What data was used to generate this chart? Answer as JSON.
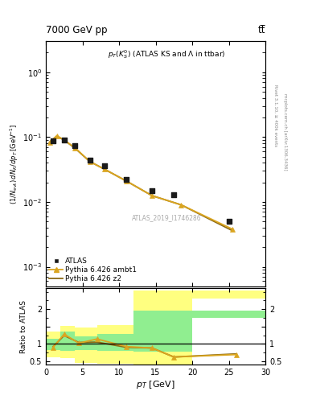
{
  "title_left": "7000 GeV pp",
  "title_right": "tt̅",
  "plot_title": "p_{T}(K^{0}_{S}) (ATLAS KS and \\Lambda in ttbar)",
  "watermark": "ATLAS_2019_I1746286",
  "right_label": "Rivet 3.1.10, ≥ 400k events",
  "right_label2": "mcplots.cern.ch [arXiv:1306.3436]",
  "atlas_x": [
    1.0,
    2.5,
    4.0,
    6.0,
    8.0,
    11.0,
    14.5,
    17.5,
    25.0
  ],
  "atlas_y": [
    0.088,
    0.09,
    0.073,
    0.044,
    0.036,
    0.022,
    0.015,
    0.013,
    0.005
  ],
  "ambt1_x": [
    0.5,
    1.5,
    2.5,
    4.0,
    6.0,
    8.0,
    11.0,
    14.5,
    18.5,
    25.5
  ],
  "ambt1_y": [
    0.082,
    0.105,
    0.09,
    0.068,
    0.042,
    0.032,
    0.021,
    0.0125,
    0.009,
    0.0038
  ],
  "z2_x": [
    0.5,
    1.5,
    2.5,
    4.0,
    6.0,
    8.0,
    11.0,
    14.5,
    18.5,
    25.5
  ],
  "z2_y": [
    0.083,
    0.103,
    0.09,
    0.067,
    0.042,
    0.032,
    0.021,
    0.0125,
    0.009,
    0.0036
  ],
  "ratio_ambt1_x": [
    1.0,
    2.5,
    4.5,
    7.0,
    11.0,
    14.5,
    17.5,
    26.0
  ],
  "ratio_ambt1_y": [
    0.9,
    1.28,
    1.02,
    1.14,
    0.92,
    0.88,
    0.62,
    0.69
  ],
  "ratio_z2_x": [
    1.0,
    2.5,
    4.5,
    7.0,
    11.0,
    14.5,
    17.5,
    26.0
  ],
  "ratio_z2_y": [
    0.92,
    1.24,
    1.04,
    1.05,
    0.9,
    0.88,
    0.62,
    0.71
  ],
  "band_yellow_x": [
    0.0,
    2.0,
    2.0,
    4.0,
    4.0,
    7.0,
    7.0,
    12.0,
    12.0,
    20.0,
    20.0,
    30.0
  ],
  "band_yellow_lo": [
    0.62,
    0.62,
    0.58,
    0.58,
    0.45,
    0.45,
    0.43,
    0.43,
    0.4,
    0.4,
    2.3,
    2.3
  ],
  "band_yellow_hi": [
    1.35,
    1.35,
    1.52,
    1.52,
    1.47,
    1.47,
    1.55,
    1.55,
    2.55,
    2.55,
    2.55,
    2.55
  ],
  "band_green_x": [
    0.0,
    2.0,
    2.0,
    4.0,
    4.0,
    7.0,
    7.0,
    12.0,
    12.0,
    20.0,
    20.0,
    30.0
  ],
  "band_green_lo": [
    0.82,
    0.82,
    0.8,
    0.8,
    0.82,
    0.82,
    0.8,
    0.8,
    0.78,
    0.78,
    1.75,
    1.75
  ],
  "band_green_hi": [
    1.15,
    1.15,
    1.36,
    1.36,
    1.22,
    1.22,
    1.28,
    1.28,
    1.95,
    1.95,
    1.95,
    1.95
  ],
  "color_atlas": "#1a1a1a",
  "color_ambt1": "#DAA520",
  "color_z2": "#8B6914",
  "color_yellow": "#FFFF80",
  "color_green": "#90EE90",
  "ylim_main": [
    0.0005,
    3.0
  ],
  "ylim_ratio": [
    0.4,
    2.6
  ],
  "xlim": [
    0,
    30
  ],
  "bg_color": "#ffffff"
}
